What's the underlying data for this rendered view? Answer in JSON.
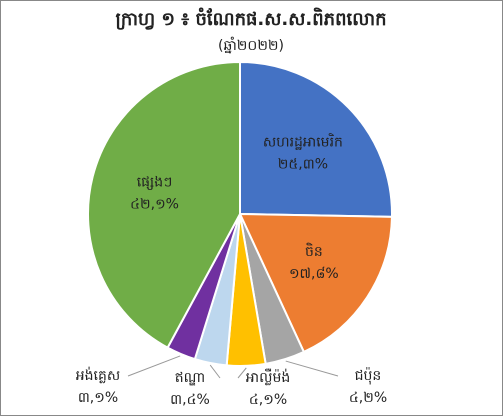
{
  "chart_data": {
    "type": "pie",
    "title": "ក្រាហ្វ ១ ៖ ចំណែកផ.ស.ស.ពិភពលោក",
    "subtitle": "(ឆ្នាំ២០២២)",
    "categories": [
      "សហរដ្ឋអាមេរិក",
      "ចិន",
      "ជប៉ុន",
      "អាល្លឺម៉ង់",
      "ឥណ្ឌា",
      "អង់គ្លេស",
      "ផ្សេងៗ"
    ],
    "values": [
      25.3,
      17.8,
      4.2,
      4.1,
      3.4,
      3.1,
      42.1
    ],
    "value_labels": [
      "២៥,៣%",
      "១៧,៨%",
      "៤,២%",
      "៤,១%",
      "៣,៤%",
      "៣,១%",
      "៤២,១%"
    ],
    "colors": [
      "#4472c4",
      "#ed7d31",
      "#a5a5a5",
      "#ffc000",
      "#bdd7ee",
      "#7030a0",
      "#70ad47"
    ]
  }
}
